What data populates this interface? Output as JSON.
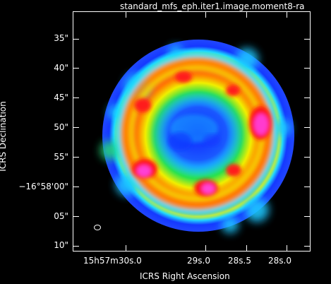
{
  "window": {
    "title": "standard_mfs_eph.iter1.image.moment8-ra"
  },
  "axes": {
    "x_label": "ICRS Right Ascension",
    "y_label": "ICRS Declination",
    "x_ticks": [
      "15h57m30s.0",
      "29s.0",
      "28s.5",
      "28s.0"
    ],
    "y_ticks": [
      "35\"",
      "40\"",
      "45\"",
      "50\"",
      "55\"",
      "−16°58'00\"",
      "05\"",
      "10\""
    ]
  },
  "colors": {
    "background": "#000000",
    "frame": "#ffffff",
    "outer_blue": "#1b3cff",
    "deep_blue": "#1018ff",
    "cyan": "#19c8ff",
    "green": "#26e04c",
    "yellow": "#f6f000",
    "orange": "#ff8a00",
    "red": "#ff1a1a",
    "magenta": "#ff2fd0"
  },
  "icons": {
    "beam_marker": "ellipse-beam-icon"
  }
}
